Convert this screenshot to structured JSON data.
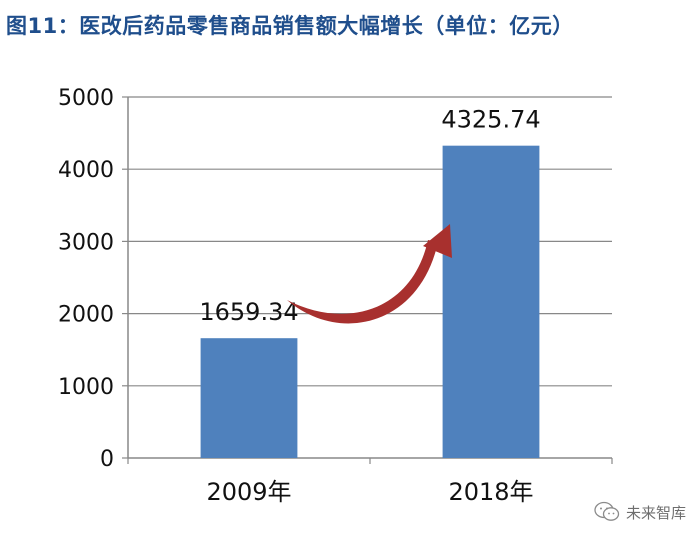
{
  "title": "图11：医改后药品零售商品销售额大幅增长（单位：亿元）",
  "colors": {
    "title": "#1f4e8c",
    "bar": "#4f81bd",
    "arrow": "#a8302e",
    "axis": "#888888",
    "text": "#111111"
  },
  "watermark": {
    "text": "未来智库",
    "icon": "wechat-icon"
  },
  "chart_data": {
    "type": "bar",
    "title": "",
    "xlabel": "",
    "ylabel": "",
    "categories": [
      "2009年",
      "2018年"
    ],
    "values": [
      1659.34,
      4325.74
    ],
    "data_labels": [
      "1659.34",
      "4325.74"
    ],
    "ylim": [
      0,
      5000
    ],
    "yticks": [
      "0",
      "1000",
      "2000",
      "3000",
      "4000",
      "5000"
    ],
    "grid": true,
    "legend": "none",
    "annotation": "growth-arrow"
  }
}
